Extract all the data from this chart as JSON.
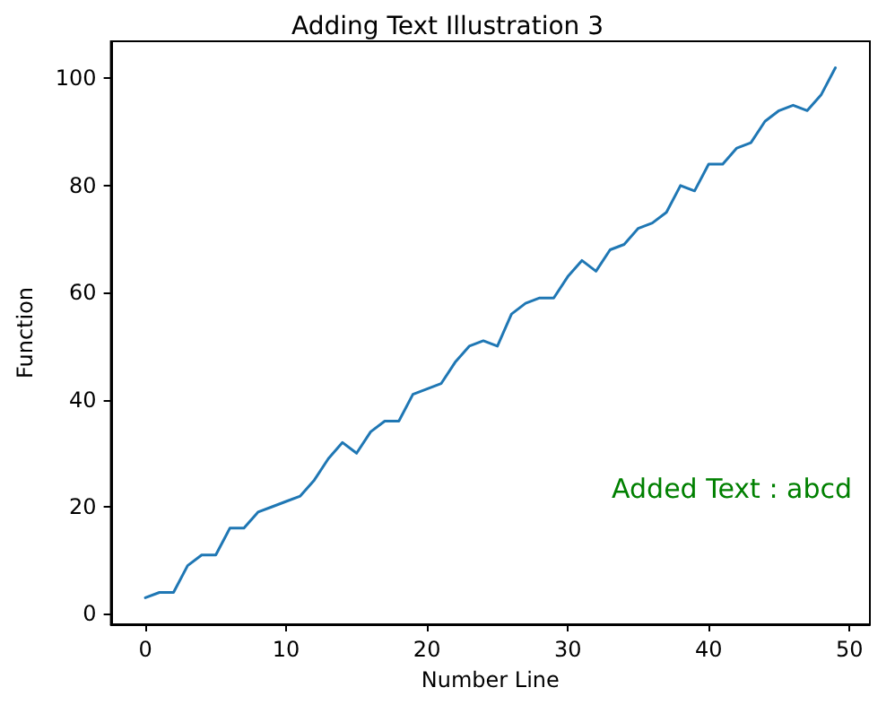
{
  "chart_data": {
    "type": "line",
    "title": "Adding Text Illustration 3",
    "xlabel": "Number Line",
    "ylabel": "Function",
    "x": [
      0,
      1,
      2,
      3,
      4,
      5,
      6,
      7,
      8,
      9,
      10,
      11,
      12,
      13,
      14,
      15,
      16,
      17,
      18,
      19,
      20,
      21,
      22,
      23,
      24,
      25,
      26,
      27,
      28,
      29,
      30,
      31,
      32,
      33,
      34,
      35,
      36,
      37,
      38,
      39,
      40,
      41,
      42,
      43,
      44,
      45,
      46,
      47,
      48,
      49
    ],
    "series": [
      {
        "color": "#1f77b4",
        "values": [
          3,
          4,
          4,
          9,
          11,
          11,
          16,
          16,
          19,
          20,
          21,
          22,
          25,
          29,
          32,
          30,
          34,
          36,
          36,
          41,
          42,
          43,
          47,
          50,
          51,
          50,
          56,
          58,
          59,
          59,
          63,
          66,
          64,
          68,
          69,
          72,
          73,
          75,
          80,
          79,
          84,
          84,
          87,
          88,
          92,
          94,
          95,
          94,
          97,
          102
        ]
      }
    ],
    "xlim": [
      -2.45,
      51.45
    ],
    "xticks": [
      0,
      10,
      20,
      30,
      40,
      50
    ],
    "ylim": [
      -1.95,
      106.95
    ],
    "yticks": [
      0,
      20,
      40,
      60,
      80,
      100
    ],
    "annotations": [
      "Added Text : abcd"
    ],
    "grid": false,
    "marker": "none",
    "line_style": "solid"
  }
}
